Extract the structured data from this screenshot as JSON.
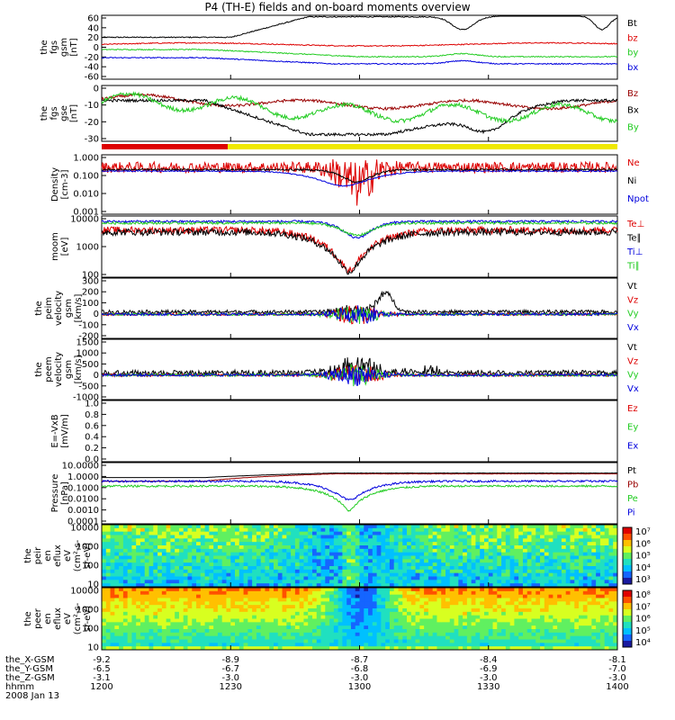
{
  "title": "P4 (TH-E) fields and on-board moments overview",
  "colors": {
    "black": "#000000",
    "red": "#dd0000",
    "green": "#22cc22",
    "blue": "#0000dd",
    "darkred": "#990000",
    "yellow": "#f0e800"
  },
  "chart_data": {
    "type": "line",
    "x_range_hhmm": [
      "1200",
      "1400"
    ],
    "x_ticks": [
      "1200",
      "1230",
      "1300",
      "1330",
      "1400"
    ],
    "footer_rows": [
      {
        "label": "the_X-GSM",
        "values": [
          "-9.2",
          "-8.9",
          "-8.7",
          "-8.4",
          "-8.1"
        ]
      },
      {
        "label": "the_Y-GSM",
        "values": [
          "-6.5",
          "-6.7",
          "-6.8",
          "-6.9",
          "-7.0"
        ]
      },
      {
        "label": "the_Z-GSM",
        "values": [
          "-3.1",
          "-3.0",
          "-3.0",
          "-3.0",
          "-3.0"
        ]
      },
      {
        "label": "hhmm",
        "values": [
          "1200",
          "1230",
          "1300",
          "1330",
          "1400"
        ]
      }
    ],
    "date_label": "2008 Jan 13",
    "panels": [
      {
        "id": "fgs_gsm",
        "ylabel": [
          "the",
          "fgs",
          "gsm",
          "[nT]"
        ],
        "yticks": [
          "60",
          "40",
          "20",
          "0",
          "-20",
          "-40",
          "-60"
        ],
        "ylim": [
          -60,
          65
        ],
        "series": [
          {
            "name": "Bt",
            "color": "#000000"
          },
          {
            "name": "bz",
            "color": "#dd0000"
          },
          {
            "name": "by",
            "color": "#22cc22"
          },
          {
            "name": "bx",
            "color": "#0000dd"
          }
        ]
      },
      {
        "id": "fgs_gse",
        "ylabel": [
          "the",
          "fgs",
          "gse",
          "[nT]"
        ],
        "yticks": [
          "0",
          "-10",
          "-20",
          "-30"
        ],
        "ylim": [
          -33,
          8
        ],
        "series": [
          {
            "name": "Bz",
            "color": "#990000"
          },
          {
            "name": "Bx",
            "color": "#000000"
          },
          {
            "name": "By",
            "color": "#22cc22"
          }
        ]
      },
      {
        "id": "density",
        "ylabel": [
          "Density",
          "[cm-3]"
        ],
        "yticks": [
          "1.000",
          "0.100",
          "0.010",
          "0.001"
        ],
        "ylim": [
          0.001,
          2
        ],
        "log": true,
        "series": [
          {
            "name": "Ne",
            "color": "#dd0000"
          },
          {
            "name": "Ni",
            "color": "#000000"
          },
          {
            "name": "Npot",
            "color": "#0000dd"
          }
        ]
      },
      {
        "id": "temperature",
        "ylabel": [
          "moom",
          "[eV]"
        ],
        "yticks": [
          "10000",
          "1000",
          "100"
        ],
        "ylim": [
          30,
          12000
        ],
        "log": true,
        "series": [
          {
            "name": "Te⊥",
            "color": "#dd0000"
          },
          {
            "name": "Te∥",
            "color": "#000000"
          },
          {
            "name": "Ti⊥",
            "color": "#0000dd"
          },
          {
            "name": "Ti∥",
            "color": "#22cc22"
          }
        ]
      },
      {
        "id": "peim_velocity",
        "ylabel": [
          "the",
          "peim",
          "velocity",
          "gsm",
          "[km/s]"
        ],
        "yticks": [
          "300",
          "200",
          "100",
          "0",
          "-100",
          "-200"
        ],
        "ylim": [
          -200,
          300
        ],
        "series": [
          {
            "name": "Vt",
            "color": "#000000"
          },
          {
            "name": "Vz",
            "color": "#dd0000"
          },
          {
            "name": "Vy",
            "color": "#22cc22"
          },
          {
            "name": "Vx",
            "color": "#0000dd"
          }
        ]
      },
      {
        "id": "peem_velocity",
        "ylabel": [
          "the",
          "peem",
          "velocity",
          "gsm",
          "[km/s]"
        ],
        "yticks": [
          "1500",
          "1000",
          "500",
          "0",
          "-500",
          "-1000"
        ],
        "ylim": [
          -1100,
          1600
        ],
        "series": [
          {
            "name": "Vt",
            "color": "#000000"
          },
          {
            "name": "Vz",
            "color": "#dd0000"
          },
          {
            "name": "Vy",
            "color": "#22cc22"
          },
          {
            "name": "Vx",
            "color": "#0000dd"
          }
        ]
      },
      {
        "id": "efield",
        "ylabel": [
          "E=-VxB",
          "[mV/m]"
        ],
        "yticks": [
          "1.0",
          "0.8",
          "0.6",
          "0.4",
          "0.2",
          "0.0"
        ],
        "ylim": [
          0,
          1
        ],
        "series": [
          {
            "name": "Ez",
            "color": "#dd0000"
          },
          {
            "name": "Ey",
            "color": "#22cc22"
          },
          {
            "name": "Ex",
            "color": "#0000dd"
          }
        ]
      },
      {
        "id": "pressure",
        "ylabel": [
          "Pressure",
          "[nPa]"
        ],
        "yticks": [
          "10.0000",
          "1.0000",
          "0.1000",
          "0.0100",
          "0.0010",
          "0.0001"
        ],
        "ylim": [
          0.0001,
          10
        ],
        "log": true,
        "series": [
          {
            "name": "Pt",
            "color": "#000000"
          },
          {
            "name": "Pb",
            "color": "#990000"
          },
          {
            "name": "Pe",
            "color": "#22cc22"
          },
          {
            "name": "Pi",
            "color": "#0000dd"
          }
        ]
      },
      {
        "id": "peir_eflux",
        "ylabel": [
          "the",
          "peir",
          "en",
          "eflux",
          "eV",
          "(cm²-s-",
          "sr-eV)"
        ],
        "yticks": [
          "10000",
          "1000",
          "100",
          "10"
        ],
        "type": "heatmap",
        "colorbar_ticks": [
          "10⁷",
          "10⁶",
          "10⁵",
          "10⁴",
          "10³"
        ]
      },
      {
        "id": "peer_eflux",
        "ylabel": [
          "the",
          "peer",
          "en",
          "eflux",
          "eV",
          "(cm²-s-",
          "sr-eV)"
        ],
        "yticks": [
          "10000",
          "1000",
          "100",
          "10"
        ],
        "type": "heatmap",
        "colorbar_ticks": [
          "10⁸",
          "10⁷",
          "10⁶",
          "10⁵",
          "10⁴"
        ]
      }
    ]
  }
}
